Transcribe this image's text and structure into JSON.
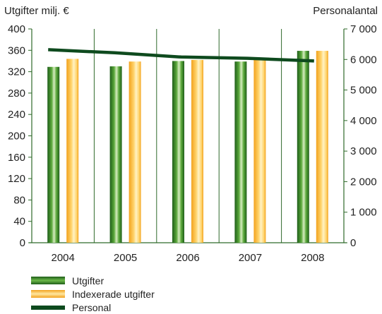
{
  "chart_data": {
    "type": "bar",
    "left_axis_title": "Utgifter milj. €",
    "right_axis_title": "Personalantal",
    "categories": [
      "2004",
      "2005",
      "2006",
      "2007",
      "2008"
    ],
    "y_left": {
      "min": 0,
      "max": 400,
      "ticks": [
        "0",
        "40",
        "80",
        "120",
        "160",
        "200",
        "240",
        "280",
        "320",
        "360",
        "400"
      ]
    },
    "y_right": {
      "min": 0,
      "max": 7000,
      "ticks": [
        "0",
        "1 000",
        "2 000",
        "3 000",
        "4 000",
        "5 000",
        "6 000",
        "7 000"
      ]
    },
    "series": [
      {
        "name": "Utgifter",
        "kind": "bar",
        "axis": "left",
        "color": "#3a8a2c",
        "values": [
          329,
          330,
          340,
          339,
          359
        ]
      },
      {
        "name": "Indexerade utgifter",
        "kind": "bar",
        "axis": "left",
        "color": "#f5b830",
        "values": [
          344,
          339,
          342,
          343,
          359
        ]
      },
      {
        "name": "Personal",
        "kind": "line",
        "axis": "right",
        "color": "#0e4a1e",
        "values": [
          6320,
          6220,
          6080,
          6040,
          5950
        ]
      }
    ],
    "grid": "vertical-separators",
    "legend_position": "bottom-left"
  }
}
